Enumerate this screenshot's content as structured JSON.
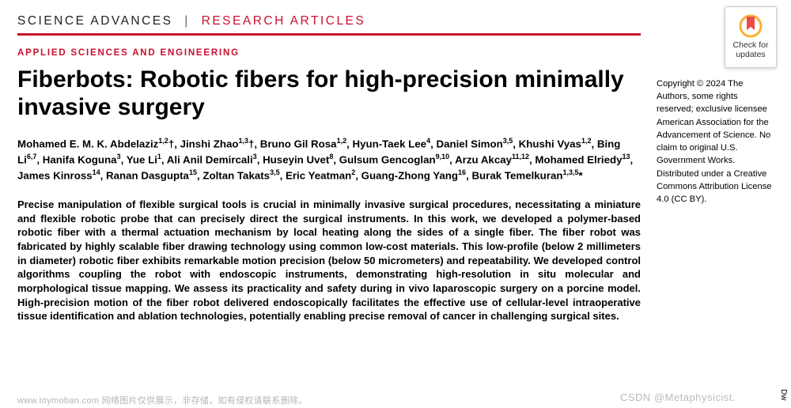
{
  "journal": {
    "name": "SCIENCE ADVANCES",
    "section": "RESEARCH ARTICLES"
  },
  "category": "APPLIED SCIENCES AND ENGINEERING",
  "title": "Fiberbots: Robotic fibers for high-precision minimally invasive surgery",
  "authors_html": "Mohamed E. M. K. Abdelaziz<sup>1,2</sup>†, Jinshi Zhao<sup>1,3</sup>†, Bruno Gil Rosa<sup>1,2</sup>, Hyun-Taek Lee<sup>4</sup>, Daniel Simon<sup>3,5</sup>, Khushi Vyas<sup>1,2</sup>, Bing Li<sup>6,7</sup>, Hanifa Koguna<sup>3</sup>, Yue Li<sup>1</sup>, Ali Anil Demircali<sup>3</sup>, Huseyin Uvet<sup>8</sup>, Gulsum Gencoglan<sup>9,10</sup>, Arzu Akcay<sup>11,12</sup>, Mohamed Elriedy<sup>13</sup>, James Kinross<sup>14</sup>, Ranan Dasgupta<sup>15</sup>, Zoltan Takats<sup>3,5</sup>, Eric Yeatman<sup>2</sup>, Guang-Zhong Yang<sup>16</sup>, Burak Temelkuran<sup>1,3,5</sup>*",
  "abstract": "Precise manipulation of flexible surgical tools is crucial in minimally invasive surgical procedures, necessitating a miniature and flexible robotic probe that can precisely direct the surgical instruments. In this work, we developed a polymer-based robotic fiber with a thermal actuation mechanism by local heating along the sides of a single fiber. The fiber robot was fabricated by highly scalable fiber drawing technology using common low-cost materials. This low-profile (below 2 millimeters in diameter) robotic fiber exhibits remarkable motion precision (below 50 micrometers) and repeatability. We developed control algorithms coupling the robot with endoscopic instruments, demonstrating high-resolution in situ molecular and morphological tissue mapping. We assess its practicality and safety during in vivo laparoscopic surgery on a porcine model. High-precision motion of the fiber robot delivered endoscopically facilitates the effective use of cellular-level intraoperative tissue identification and ablation technologies, potentially enabling precise removal of cancer in challenging surgical sites.",
  "copyright": "Copyright © 2024 The Authors, some rights reserved; exclusive licensee American Association for the Advancement of Science. No claim to original U.S. Government Works. Distributed under a Creative Commons Attribution License 4.0 (CC BY).",
  "badge": {
    "line1": "Check for",
    "line2": "updates"
  },
  "watermarks": {
    "left": "www.toymoban.com  网络图片仅供展示，非存储，如有侵权请联系删除。",
    "right": "CSDN @Metaphysicist.",
    "side": "Dw"
  },
  "colors": {
    "accent": "#c8102e"
  }
}
